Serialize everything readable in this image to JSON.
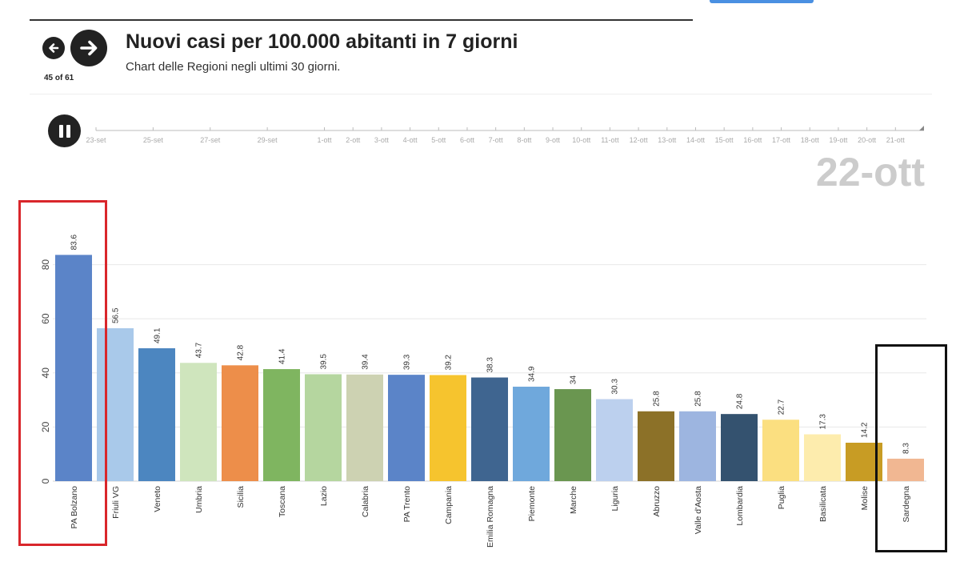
{
  "header": {
    "title": "Nuovi casi per 100.000 abitanti in 7 giorni",
    "subtitle": "Chart delle Regioni negli ultimi 30 giorni.",
    "counter": "45 of 61",
    "current_date": "22-ott"
  },
  "timeline": {
    "ticks": [
      "23-set",
      "25-set",
      "27-set",
      "29-set",
      "1-ott",
      "2-ott",
      "3-ott",
      "4-ott",
      "5-ott",
      "6-ott",
      "7-ott",
      "8-ott",
      "9-ott",
      "10-ott",
      "11-ott",
      "12-ott",
      "13-ott",
      "14-ott",
      "15-ott",
      "16-ott",
      "17-ott",
      "18-ott",
      "19-ott",
      "20-ott",
      "21-ott"
    ]
  },
  "chart_data": {
    "type": "bar",
    "categories": [
      "PA Bolzano",
      "Friuli VG",
      "Veneto",
      "Umbria",
      "Sicilia",
      "Toscana",
      "Lazio",
      "Calabria",
      "PA Trento",
      "Campania",
      "Emilia Romagna",
      "Piemonte",
      "Marche",
      "Liguria",
      "Abruzzo",
      "Valle d'Aosta",
      "Lombardia",
      "Puglia",
      "Basilicata",
      "Molise",
      "Sardegna"
    ],
    "values": [
      83.6,
      56.5,
      49.1,
      43.7,
      42.8,
      41.4,
      39.5,
      39.4,
      39.3,
      39.2,
      38.3,
      34.9,
      34,
      30.3,
      25.8,
      25.8,
      24.8,
      22.7,
      17.3,
      14.2,
      8.3
    ],
    "value_labels": [
      "83.6",
      "56.5",
      "49.1",
      "43.7",
      "42.8",
      "41.4",
      "39.5",
      "39.4",
      "39.3",
      "39.2",
      "38.3",
      "34.9",
      "34",
      "30.3",
      "25.8",
      "25.8",
      "24.8",
      "22.7",
      "17.3",
      "14.2",
      "8.3"
    ],
    "colors": [
      "#5b84c8",
      "#a9c9ea",
      "#4c86c0",
      "#cfe5bd",
      "#ed8e4a",
      "#7fb560",
      "#b5d69f",
      "#cdd2b2",
      "#5b84c8",
      "#f6c42e",
      "#3f6590",
      "#6fa8dc",
      "#6a9650",
      "#bcd0ee",
      "#8c7128",
      "#9db5e0",
      "#34526f",
      "#fbdf80",
      "#fdecad",
      "#c89c24",
      "#f1b792"
    ],
    "yticks": [
      0,
      20,
      40,
      60,
      80
    ],
    "ylim": [
      0,
      92
    ],
    "grid": true,
    "legend": "none",
    "xlabel": "",
    "ylabel": ""
  }
}
